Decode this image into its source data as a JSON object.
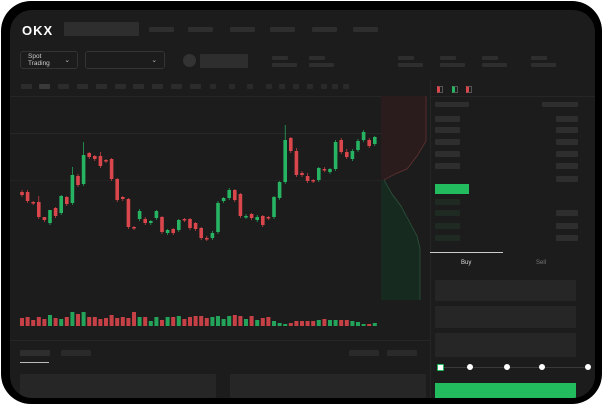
{
  "app": {
    "logo": "OKX"
  },
  "header": {
    "market_selector": "Spot Trading",
    "pair_selector": ""
  },
  "order_panel": {
    "tabs": [
      {
        "label": "Buy",
        "active": true
      },
      {
        "label": "Sell",
        "active": false
      }
    ],
    "slider_percent": 0,
    "slider_stops": 5
  },
  "colors": {
    "up": "#26b462",
    "down": "#d9464b",
    "bg": "#1c1c1c",
    "accent": "#22bb5e"
  },
  "chart_data": {
    "type": "candlestick",
    "candles": [
      [
        118,
        115
      ],
      [
        118,
        109
      ],
      [
        108,
        107
      ],
      [
        108,
        93
      ],
      [
        93,
        90
      ],
      [
        87,
        100
      ],
      [
        102,
        94
      ],
      [
        97,
        114
      ],
      [
        113,
        106
      ],
      [
        107,
        135
      ],
      [
        134,
        125
      ],
      [
        126,
        155
      ],
      [
        157,
        153
      ],
      [
        154,
        151
      ],
      [
        154,
        144
      ],
      [
        150,
        149
      ],
      [
        151,
        131
      ],
      [
        131,
        110
      ],
      [
        113,
        111
      ],
      [
        111,
        83
      ],
      [
        83,
        82
      ],
      [
        91,
        99
      ],
      [
        91,
        87
      ],
      [
        87,
        89
      ],
      [
        92,
        99
      ],
      [
        93,
        78
      ],
      [
        77,
        80
      ],
      [
        81,
        77
      ],
      [
        80,
        90
      ],
      [
        91,
        90
      ],
      [
        91,
        82
      ],
      [
        87,
        81
      ],
      [
        82,
        72
      ],
      [
        72,
        71
      ],
      [
        72,
        77
      ],
      [
        78,
        107
      ],
      [
        109,
        112
      ],
      [
        112,
        120
      ],
      [
        120,
        110
      ],
      [
        116,
        94
      ],
      [
        93,
        94
      ],
      [
        96,
        92
      ],
      [
        90,
        93
      ],
      [
        94,
        85
      ],
      [
        93,
        92
      ],
      [
        93,
        113
      ],
      [
        112,
        128
      ],
      [
        128,
        170
      ],
      [
        172,
        159
      ],
      [
        159,
        135
      ],
      [
        137,
        135
      ],
      [
        134,
        129
      ],
      [
        130,
        129
      ],
      [
        130,
        142
      ],
      [
        141,
        140
      ],
      [
        138,
        141
      ],
      [
        141,
        168
      ],
      [
        170,
        158
      ],
      [
        158,
        153
      ],
      [
        151,
        159
      ],
      [
        160,
        169
      ],
      [
        170,
        178
      ],
      [
        170,
        164
      ],
      [
        166,
        173
      ]
    ],
    "volume": [
      8,
      9,
      6,
      9,
      7,
      11,
      8,
      7,
      9,
      14,
      12,
      14,
      9,
      9,
      7,
      8,
      11,
      8,
      9,
      8,
      14,
      9,
      9,
      5,
      9,
      6,
      9,
      9,
      10,
      7,
      9,
      10,
      10,
      8,
      9,
      10,
      7,
      10,
      11,
      10,
      7,
      10,
      6,
      8,
      9,
      5,
      3,
      2,
      3,
      5,
      5,
      5,
      5,
      6,
      7,
      6,
      6,
      6,
      6,
      5,
      4,
      2,
      2,
      3
    ],
    "high": [
      120,
      120,
      109,
      114,
      93,
      100,
      103,
      115,
      114,
      143,
      136,
      168,
      158,
      155,
      158,
      151,
      152,
      132,
      114,
      112,
      84,
      101,
      93,
      90,
      100,
      94,
      81,
      82,
      91,
      92,
      92,
      88,
      83,
      74,
      79,
      109,
      113,
      122,
      121,
      117,
      96,
      97,
      95,
      95,
      94,
      114,
      129,
      185,
      173,
      162,
      139,
      137,
      131,
      143,
      143,
      142,
      170,
      172,
      161,
      161,
      171,
      180,
      172,
      174
    ]
  }
}
